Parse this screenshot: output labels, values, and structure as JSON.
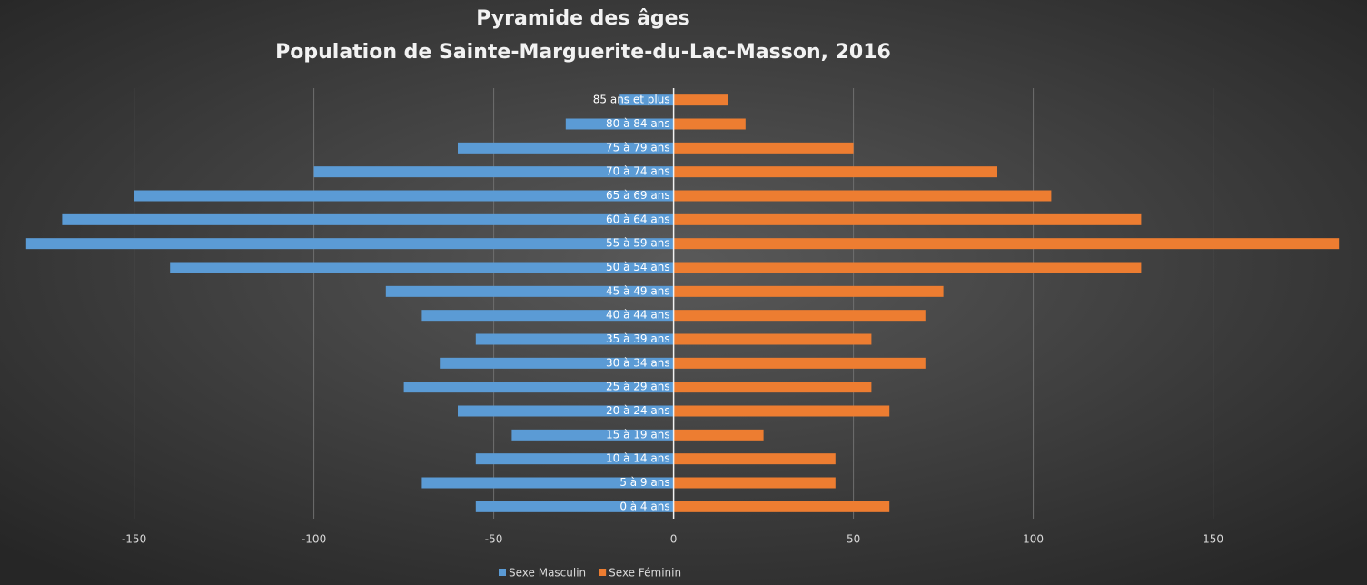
{
  "chart_data": {
    "type": "bar",
    "orientation": "horizontal",
    "title": "Pyramide des âges",
    "subtitle": "Population de Sainte-Marguerite-du-Lac-Masson, 2016",
    "categories": [
      "85 ans et plus",
      "80 à 84 ans",
      "75 à 79 ans",
      "70 à 74 ans",
      "65 à 69 ans",
      "60 à 64 ans",
      "55 à 59 ans",
      "50 à 54 ans",
      "45 à 49 ans",
      "40 à 44 ans",
      "35 à 39 ans",
      "30 à 34 ans",
      "25 à 29 ans",
      "20 à 24 ans",
      "15 à 19 ans",
      "10 à 14 ans",
      "5 à 9 ans",
      "0 à 4 ans"
    ],
    "series": [
      {
        "name": "Sexe Masculin",
        "color": "#5b9bd5",
        "values": [
          -15,
          -30,
          -60,
          -100,
          -150,
          -170,
          -180,
          -140,
          -80,
          -70,
          -55,
          -65,
          -75,
          -60,
          -45,
          -55,
          -70,
          -55
        ]
      },
      {
        "name": "Sexe Féminin",
        "color": "#ed7d31",
        "values": [
          15,
          20,
          50,
          90,
          105,
          130,
          185,
          130,
          75,
          70,
          55,
          70,
          55,
          60,
          25,
          45,
          45,
          60
        ]
      }
    ],
    "xlim": [
      -185,
      190
    ],
    "xticks": [
      -150,
      -100,
      -50,
      0,
      50,
      100,
      150
    ],
    "grid": true,
    "legend": "bottom"
  }
}
